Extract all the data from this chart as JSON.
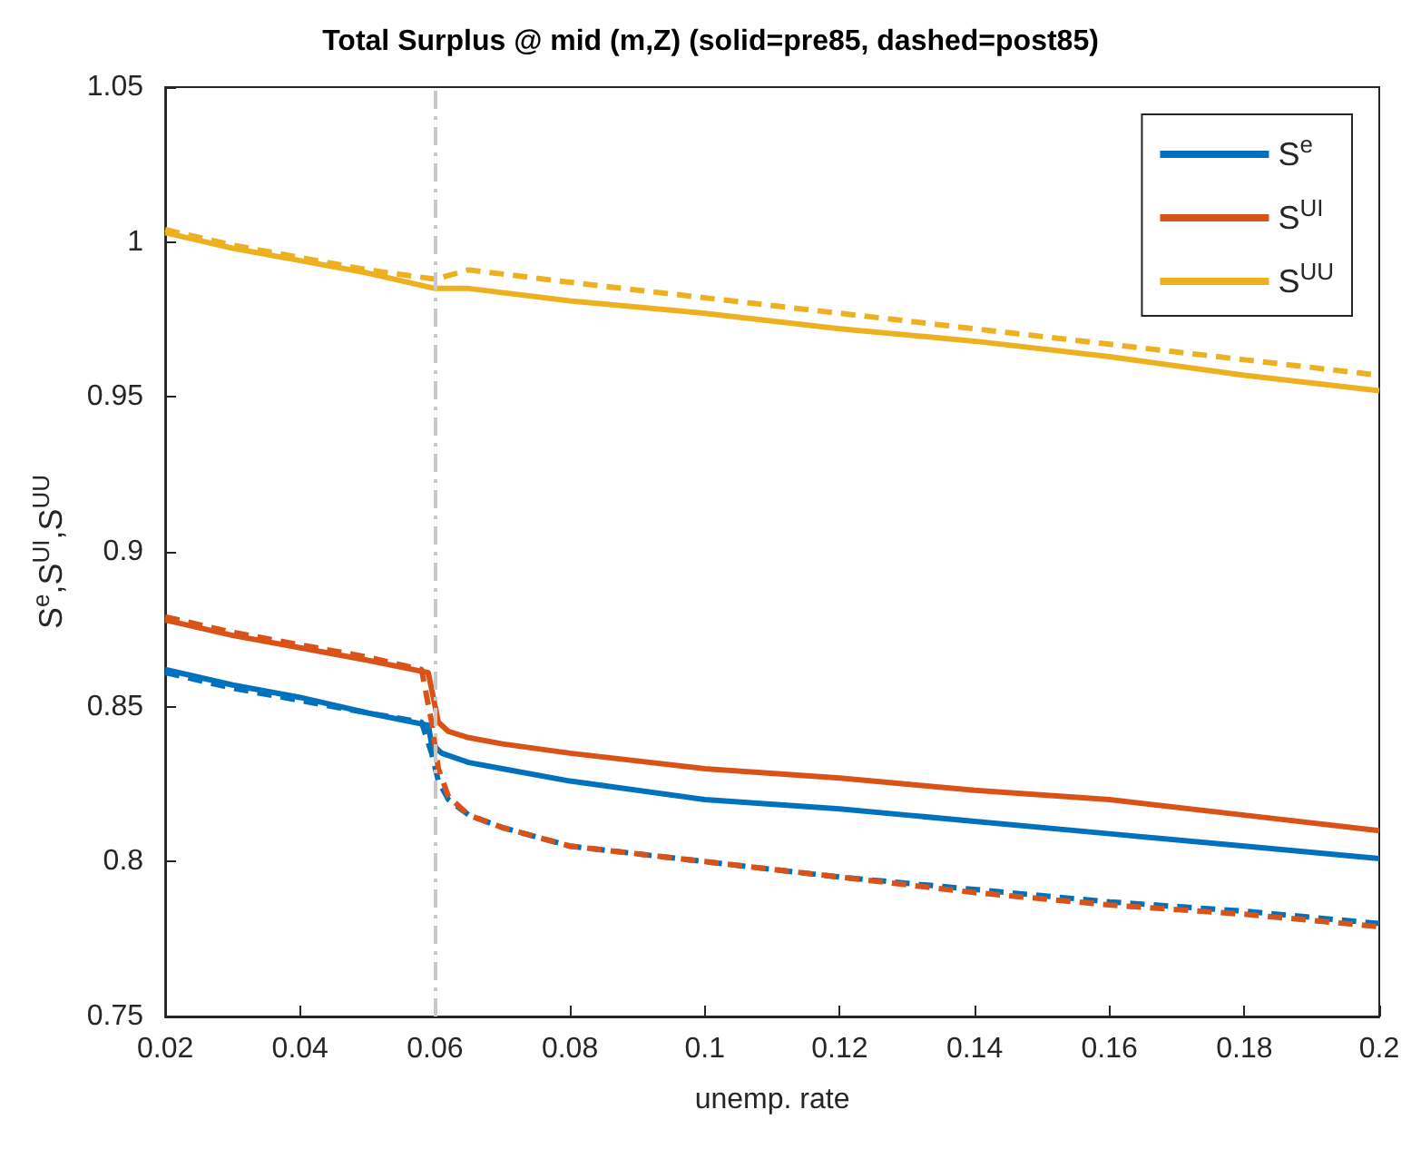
{
  "chart_data": {
    "type": "line",
    "title": "Total Surplus @ mid (m,Z) (solid=pre85, dashed=post85)",
    "xlabel": "unemp. rate",
    "ylabel": "S$^{e}$,S$^{UI}$,S$^{UU}$",
    "xlim": [
      0.02,
      0.2
    ],
    "xticks": [
      0.02,
      0.04,
      0.06,
      0.08,
      0.1,
      0.12,
      0.14,
      0.16,
      0.18,
      0.2
    ],
    "ylim": [
      0.75,
      1.05
    ],
    "yticks": [
      0.75,
      0.8,
      0.85,
      0.9,
      0.95,
      1,
      1.05
    ],
    "grid": false,
    "legend": "top right",
    "marker": "none",
    "ref_lines": [
      {
        "axis": "x",
        "value": 0.06,
        "label": null,
        "color": "#c8c8c8",
        "line_style": "dashed"
      }
    ],
    "series": [
      {
        "name": "S$^{e}$",
        "color": "#0072bd",
        "line_style": "solid",
        "x": [
          0.02,
          0.03,
          0.04,
          0.05,
          0.059,
          0.0595,
          0.0605,
          0.061,
          0.065,
          0.07,
          0.08,
          0.1,
          0.12,
          0.13,
          0.14,
          0.16,
          0.18,
          0.2
        ],
        "values": [
          0.862,
          0.857,
          0.853,
          0.848,
          0.844,
          0.838,
          0.836,
          0.835,
          0.832,
          0.83,
          0.826,
          0.82,
          0.817,
          0.815,
          0.813,
          0.809,
          0.805,
          0.801
        ]
      },
      {
        "name": "S$^{UI}$",
        "color": "#d95319",
        "line_style": "solid",
        "x": [
          0.02,
          0.03,
          0.04,
          0.05,
          0.059,
          0.0605,
          0.062,
          0.065,
          0.07,
          0.08,
          0.1,
          0.12,
          0.13,
          0.14,
          0.16,
          0.18,
          0.2
        ],
        "values": [
          0.878,
          0.873,
          0.869,
          0.865,
          0.861,
          0.845,
          0.842,
          0.84,
          0.838,
          0.835,
          0.83,
          0.827,
          0.825,
          0.823,
          0.82,
          0.815,
          0.81
        ]
      },
      {
        "name": "S$^{UU}$",
        "color": "#edb120",
        "line_style": "solid",
        "x": [
          0.02,
          0.03,
          0.04,
          0.05,
          0.06,
          0.065,
          0.08,
          0.1,
          0.12,
          0.14,
          0.16,
          0.18,
          0.2
        ],
        "values": [
          1.003,
          0.998,
          0.994,
          0.99,
          0.985,
          0.985,
          0.981,
          0.977,
          0.972,
          0.968,
          0.963,
          0.957,
          0.952
        ]
      },
      {
        "color": "#0072bd",
        "line_style": "dashed",
        "x": [
          0.02,
          0.03,
          0.04,
          0.05,
          0.058,
          0.0595,
          0.0605,
          0.062,
          0.065,
          0.07,
          0.08,
          0.1,
          0.12,
          0.14,
          0.16,
          0.18,
          0.2
        ],
        "values": [
          0.861,
          0.856,
          0.852,
          0.848,
          0.845,
          0.835,
          0.826,
          0.82,
          0.815,
          0.811,
          0.805,
          0.8,
          0.795,
          0.791,
          0.787,
          0.784,
          0.78
        ]
      },
      {
        "color": "#d95319",
        "line_style": "dashed",
        "x": [
          0.02,
          0.03,
          0.04,
          0.05,
          0.058,
          0.0595,
          0.0605,
          0.062,
          0.065,
          0.07,
          0.08,
          0.1,
          0.12,
          0.14,
          0.16,
          0.18,
          0.2
        ],
        "values": [
          0.879,
          0.874,
          0.87,
          0.866,
          0.862,
          0.845,
          0.83,
          0.821,
          0.815,
          0.811,
          0.805,
          0.8,
          0.795,
          0.79,
          0.786,
          0.783,
          0.779
        ]
      },
      {
        "color": "#edb120",
        "line_style": "dashed",
        "x": [
          0.02,
          0.03,
          0.04,
          0.05,
          0.06,
          0.065,
          0.08,
          0.1,
          0.12,
          0.14,
          0.16,
          0.18,
          0.2
        ],
        "values": [
          1.004,
          0.999,
          0.995,
          0.991,
          0.988,
          0.991,
          0.987,
          0.982,
          0.977,
          0.972,
          0.967,
          0.962,
          0.957
        ]
      }
    ]
  }
}
